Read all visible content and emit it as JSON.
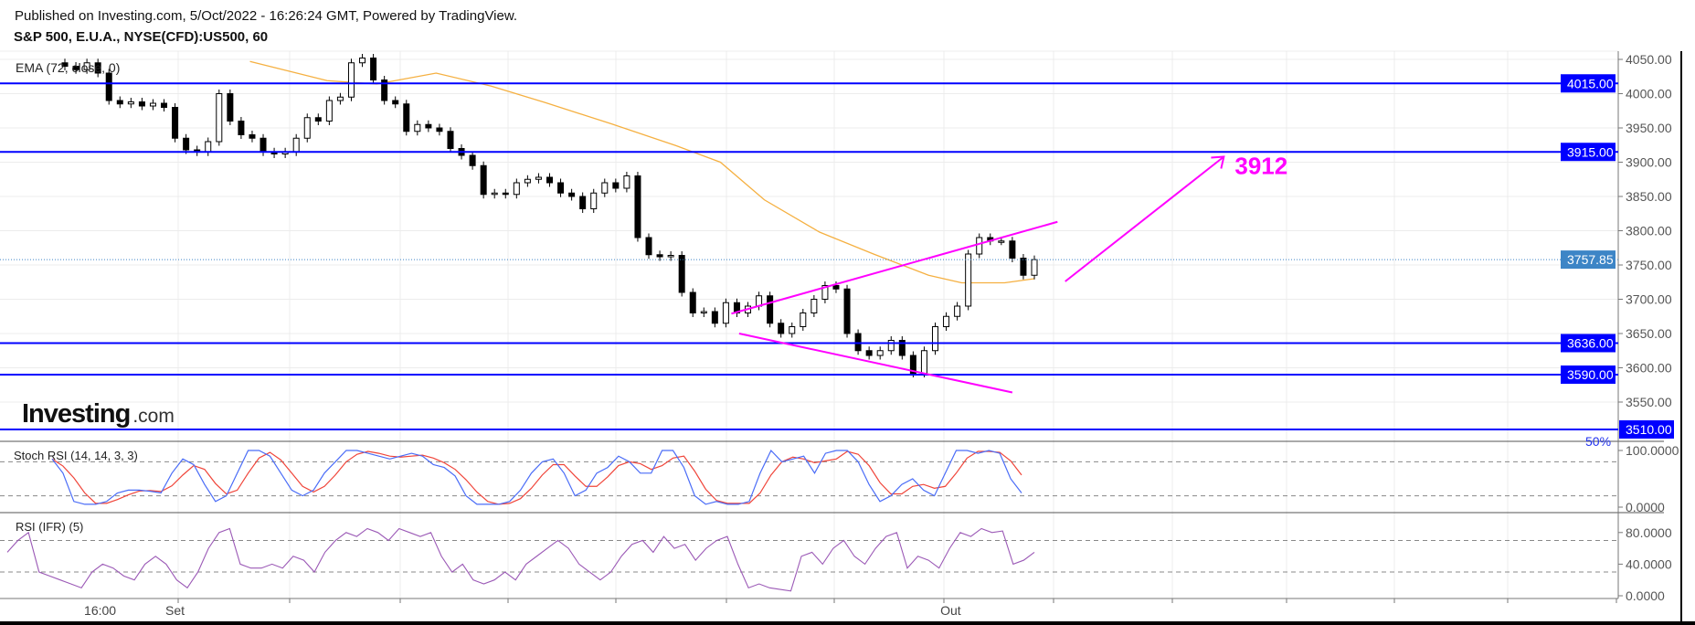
{
  "header": {
    "published": "Published on Investing.com, 5/Oct/2022 - 16:26:24 GMT, Powered by TradingView.",
    "symbol": "S&P 500, E.U.A., NYSE(CFD):US500, 60"
  },
  "logo": {
    "text": "Investing",
    "suffix": ".com"
  },
  "chart_data": {
    "type": "candlestick",
    "title": "S&P 500, E.U.A., NYSE(CFD):US500, 60",
    "x_tick_labels": [
      {
        "label": "16:00",
        "index": 3.2
      },
      {
        "label": "Set",
        "index": 10.0
      },
      {
        "label": "Out",
        "index": 80.4
      }
    ],
    "price_axis": {
      "ylim": [
        3490,
        4075
      ],
      "ticks": [
        4050,
        4000,
        3950,
        3900,
        3850,
        3800,
        3750,
        3700,
        3650,
        3600,
        3550
      ],
      "tick_labels": [
        "4050.00",
        "4000.00",
        "3950.00",
        "3900.00",
        "3850.00",
        "3800.00",
        "3750.00",
        "3700.00",
        "3650.00",
        "3600.00",
        "3550.00"
      ]
    },
    "closes": [
      4040,
      4035,
      4045,
      4030,
      3990,
      3985,
      3988,
      3982,
      3986,
      3980,
      3935,
      3918,
      3915,
      3930,
      4000,
      3960,
      3940,
      3935,
      3915,
      3912,
      3915,
      3935,
      3965,
      3960,
      3990,
      3995,
      4045,
      4052,
      4020,
      3990,
      3985,
      3945,
      3955,
      3950,
      3945,
      3920,
      3910,
      3895,
      3853,
      3855,
      3853,
      3870,
      3875,
      3878,
      3870,
      3855,
      3850,
      3832,
      3855,
      3870,
      3862,
      3880,
      3790,
      3765,
      3762,
      3764,
      3710,
      3680,
      3682,
      3665,
      3695,
      3680,
      3690,
      3705,
      3665,
      3650,
      3660,
      3680,
      3700,
      3720,
      3715,
      3650,
      3625,
      3618,
      3625,
      3640,
      3618,
      3592,
      3625,
      3660,
      3675,
      3690,
      3766,
      3790,
      3785,
      3785,
      3760,
      3735,
      3757.85
    ],
    "ema": {
      "label": "EMA (72, close, 0)",
      "color": "#f5b041",
      "points": [
        [
          16.8,
          4047
        ],
        [
          23.8,
          4019
        ],
        [
          28.3,
          4014
        ],
        [
          33.7,
          4030
        ],
        [
          38.7,
          4011
        ],
        [
          43.6,
          3987
        ],
        [
          49.6,
          3956
        ],
        [
          55.5,
          3924
        ],
        [
          59.5,
          3900
        ],
        [
          63.5,
          3845
        ],
        [
          68.5,
          3798
        ],
        [
          73.4,
          3766
        ],
        [
          78.4,
          3735
        ],
        [
          81.4,
          3724
        ],
        [
          85.3,
          3724
        ],
        [
          88.0,
          3730
        ]
      ]
    },
    "levels": [
      {
        "value": 4015,
        "label": "4015.00"
      },
      {
        "value": 3915,
        "label": "3915.00"
      },
      {
        "value": 3636,
        "label": "3636.00"
      },
      {
        "value": 3590,
        "label": "3590.00"
      },
      {
        "value": 3510,
        "label": "3510.00"
      }
    ],
    "level_color": "#0000ff",
    "last_price": {
      "value": 3757.85,
      "label": "3757.85",
      "color": "#3d85c6"
    },
    "annotations": {
      "color": "#ff00ff",
      "wedge_upper": [
        [
          60.5,
          3679
        ],
        [
          90.1,
          3813
        ]
      ],
      "wedge_lower": [
        [
          61.2,
          3650
        ],
        [
          86.0,
          3564
        ]
      ],
      "arrow": [
        [
          90.8,
          3726
        ],
        [
          105.2,
          3908
        ]
      ],
      "target_label": "3912",
      "fib_label": "50%"
    },
    "stoch_rsi": {
      "label": "Stoch RSI (14, 14, 3, 3)",
      "ticks": [
        "100.0000",
        "0.0000"
      ],
      "bands": [
        80,
        20
      ],
      "k_color": "#4a6cf7",
      "d_color": "#f0453a",
      "k": [
        85,
        60,
        10,
        5,
        5,
        10,
        25,
        30,
        30,
        28,
        25,
        60,
        85,
        75,
        40,
        10,
        20,
        60,
        100,
        100,
        90,
        60,
        30,
        20,
        30,
        60,
        80,
        100,
        100,
        95,
        90,
        85,
        90,
        95,
        90,
        75,
        70,
        55,
        20,
        5,
        5,
        5,
        10,
        30,
        60,
        80,
        85,
        60,
        20,
        30,
        60,
        70,
        90,
        80,
        60,
        60,
        100,
        100,
        70,
        20,
        5,
        10,
        5,
        5,
        10,
        60,
        100,
        80,
        85,
        90,
        60,
        95,
        100,
        100,
        80,
        40,
        10,
        20,
        40,
        50,
        30,
        20,
        60,
        100,
        100,
        95,
        100,
        95,
        50,
        25
      ]
    },
    "rsi": {
      "label": "RSI (IFR) (5)",
      "ticks": [
        "80.0000",
        "40.0000",
        "0.0000"
      ],
      "bands": [
        70,
        30
      ],
      "color": "#9b59b6",
      "values": [
        55,
        70,
        80,
        30,
        25,
        20,
        15,
        10,
        30,
        40,
        35,
        25,
        20,
        40,
        50,
        40,
        20,
        10,
        30,
        60,
        80,
        85,
        40,
        35,
        35,
        40,
        35,
        50,
        45,
        30,
        55,
        70,
        80,
        75,
        85,
        80,
        70,
        85,
        80,
        75,
        80,
        50,
        30,
        40,
        20,
        15,
        20,
        30,
        20,
        40,
        50,
        60,
        70,
        60,
        40,
        30,
        20,
        30,
        50,
        65,
        70,
        55,
        75,
        60,
        65,
        45,
        60,
        70,
        75,
        40,
        10,
        15,
        10,
        8,
        6,
        50,
        55,
        40,
        60,
        70,
        50,
        40,
        60,
        75,
        80,
        35,
        50,
        45,
        35,
        60,
        80,
        75,
        85,
        80,
        82,
        40,
        45,
        55
      ]
    }
  }
}
